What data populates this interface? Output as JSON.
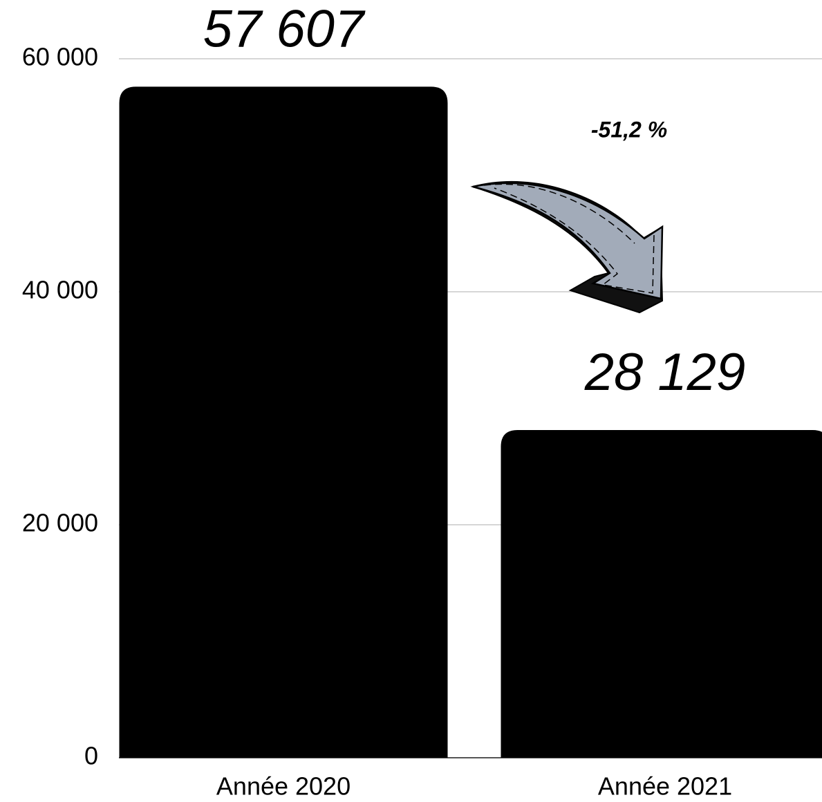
{
  "chart_data": {
    "type": "bar",
    "categories": [
      "Année 2020",
      "Année 2021"
    ],
    "values": [
      57607,
      28129
    ],
    "value_labels": [
      "57 607",
      "28 129"
    ],
    "color": "#000000",
    "ylim": [
      0,
      60000
    ],
    "yticks": [
      0,
      {
        "value": 20000,
        "label": "20 000"
      },
      {
        "value": 40000,
        "label": "40 000"
      },
      {
        "value": 60000,
        "label": "60 000"
      }
    ],
    "grid": true,
    "annotation": "-51,2 %"
  }
}
